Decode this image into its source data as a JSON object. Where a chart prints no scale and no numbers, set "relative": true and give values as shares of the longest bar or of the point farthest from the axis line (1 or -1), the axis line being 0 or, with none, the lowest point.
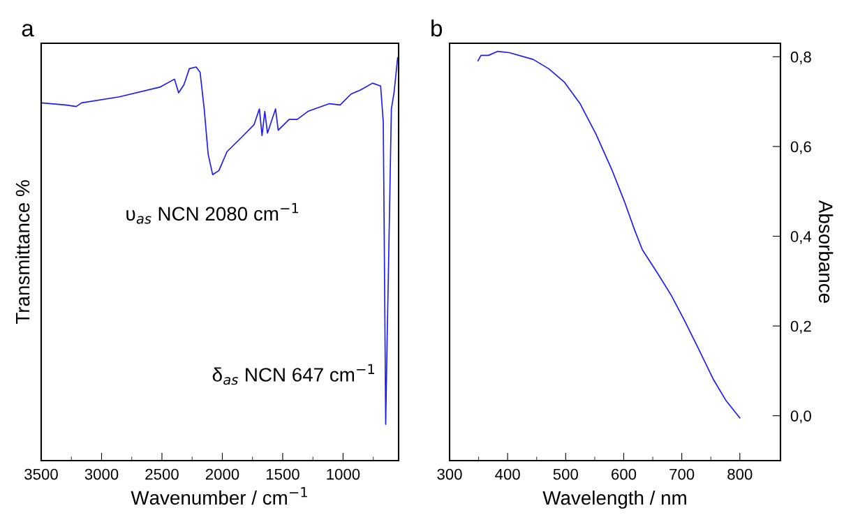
{
  "chart_data": [
    {
      "type": "line",
      "relative": true,
      "xlabel": "Wavenumber / cm$^{−1}$",
      "ylabel": "Transmittance %",
      "xlim": [
        3500,
        540
      ],
      "xticks": [
        3500,
        {
          "value": 3250,
          "label": null
        },
        3000,
        {
          "value": 2750,
          "label": null
        },
        2500,
        {
          "value": 2250,
          "label": null
        },
        2000,
        {
          "value": 1750,
          "label": null
        },
        1500,
        {
          "value": 1250,
          "label": null
        },
        1000,
        {
          "value": 750,
          "label": null
        }
      ],
      "annotations": [
        "a",
        {
          "text": "υ$_{as}$ NCN 2080 cm$^{−1}$",
          "x": 2080,
          "y": 0.71
        },
        {
          "text": "δ$_{as}$ NCN 647 cm$^{−1}$",
          "x": 647,
          "y": 0.09
        }
      ],
      "series": [
        {
          "color": "#1a1aff",
          "x": [
            3500,
            3299,
            3210,
            3165,
            2853,
            2518,
            2396,
            2362,
            2318,
            2273,
            2217,
            2184,
            2150,
            2117,
            2080,
            2028,
            1961,
            1849,
            1737,
            1693,
            1671,
            1648,
            1626,
            1559,
            1537,
            1447,
            1380,
            1291,
            1113,
            1024,
            934,
            856,
            756,
            689,
            667,
            656,
            647,
            635,
            622,
            600,
            578,
            548
          ],
          "values": [
            0.888,
            0.883,
            0.879,
            0.888,
            0.903,
            0.927,
            0.947,
            0.913,
            0.933,
            0.973,
            0.977,
            0.964,
            0.873,
            0.76,
            0.71,
            0.72,
            0.767,
            0.8,
            0.834,
            0.873,
            0.807,
            0.867,
            0.813,
            0.873,
            0.82,
            0.847,
            0.847,
            0.867,
            0.886,
            0.883,
            0.91,
            0.92,
            0.937,
            0.93,
            0.84,
            0.44,
            0.09,
            0.3,
            0.507,
            0.873,
            0.913,
            1.0
          ]
        }
      ]
    },
    {
      "type": "line",
      "xlabel": "Wavelength / nm",
      "y2label": "Absorbance",
      "xlim": [
        300,
        870
      ],
      "xticks": [
        300,
        {
          "value": 350,
          "label": null
        },
        400,
        {
          "value": 450,
          "label": null
        },
        500,
        {
          "value": 550,
          "label": null
        },
        600,
        {
          "value": 650,
          "label": null
        },
        700,
        {
          "value": 750,
          "label": null
        },
        800
      ],
      "y2lim": [
        -0.1,
        0.83
      ],
      "y2ticks": [
        {
          "value": 0,
          "label": "0,0"
        },
        {
          "value": 0.2,
          "label": "0,2"
        },
        {
          "value": 0.4,
          "label": "0,4"
        },
        {
          "value": 0.6,
          "label": "0,6"
        },
        {
          "value": 0.8,
          "label": "0,8"
        }
      ],
      "annotations": [
        "b"
      ],
      "series": [
        {
          "color": "#1a1aff",
          "axis": "y2",
          "x": [
            349,
            354,
            367,
            383,
            403,
            444,
            471,
            498,
            525,
            552,
            579,
            601,
            619,
            632,
            659,
            682,
            704,
            727,
            754,
            776,
            800
          ],
          "values": [
            0.791,
            0.803,
            0.803,
            0.812,
            0.809,
            0.794,
            0.773,
            0.743,
            0.695,
            0.628,
            0.55,
            0.478,
            0.413,
            0.37,
            0.316,
            0.268,
            0.214,
            0.154,
            0.082,
            0.034,
            -0.005
          ]
        }
      ]
    }
  ]
}
